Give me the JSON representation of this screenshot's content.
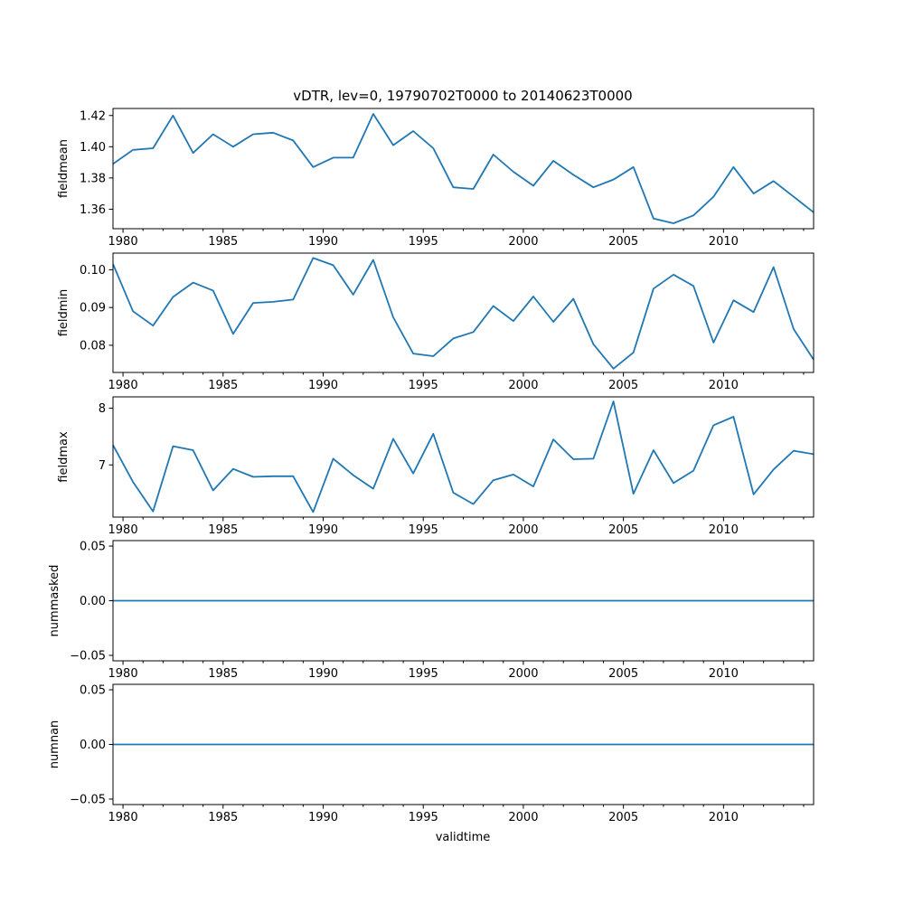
{
  "figure": {
    "title": "vDTR, lev=0, 19790702T0000 to 20140623T0000",
    "xlabel": "validtime",
    "line_color": "#1f77b4"
  },
  "chart_data": [
    {
      "type": "line",
      "name": "fieldmean",
      "ylabel": "fieldmean",
      "xlim": [
        1979.5,
        2014.5
      ],
      "ylim": [
        1.3475,
        1.4245
      ],
      "yticks": [
        1.36,
        1.38,
        1.4,
        1.42
      ],
      "ytick_labels": [
        "1.36",
        "1.38",
        "1.40",
        "1.42"
      ],
      "x": [
        1979.5,
        1980.5,
        1981.5,
        1982.5,
        1983.5,
        1984.5,
        1985.5,
        1986.5,
        1987.5,
        1988.5,
        1989.5,
        1990.5,
        1991.5,
        1992.5,
        1993.5,
        1994.5,
        1995.5,
        1996.5,
        1997.5,
        1998.5,
        1999.5,
        2000.5,
        2001.5,
        2002.5,
        2003.5,
        2004.5,
        2005.5,
        2006.5,
        2007.5,
        2008.5,
        2009.5,
        2010.5,
        2011.5,
        2012.5,
        2013.5,
        2014.5
      ],
      "values": [
        1.389,
        1.398,
        1.399,
        1.42,
        1.396,
        1.408,
        1.4,
        1.408,
        1.409,
        1.404,
        1.387,
        1.393,
        1.393,
        1.421,
        1.401,
        1.41,
        1.399,
        1.374,
        1.373,
        1.395,
        1.384,
        1.375,
        1.391,
        1.382,
        1.374,
        1.379,
        1.387,
        1.354,
        1.351,
        1.356,
        1.368,
        1.387,
        1.37,
        1.378,
        1.368,
        1.358
      ]
    },
    {
      "type": "line",
      "name": "fieldmin",
      "ylabel": "fieldmin",
      "xlim": [
        1979.5,
        2014.5
      ],
      "ylim": [
        0.0728,
        0.1044
      ],
      "yticks": [
        0.08,
        0.09,
        0.1
      ],
      "ytick_labels": [
        "0.08",
        "0.09",
        "0.10"
      ],
      "x": [
        1979.5,
        1980.5,
        1981.5,
        1982.5,
        1983.5,
        1984.5,
        1985.5,
        1986.5,
        1987.5,
        1988.5,
        1989.5,
        1990.5,
        1991.5,
        1992.5,
        1993.5,
        1994.5,
        1995.5,
        1996.5,
        1997.5,
        1998.5,
        1999.5,
        2000.5,
        2001.5,
        2002.5,
        2003.5,
        2004.5,
        2005.5,
        2006.5,
        2007.5,
        2008.5,
        2009.5,
        2010.5,
        2011.5,
        2012.5,
        2013.5,
        2014.5
      ],
      "values": [
        0.1015,
        0.089,
        0.0852,
        0.0928,
        0.0966,
        0.0945,
        0.083,
        0.0912,
        0.0915,
        0.0921,
        0.1031,
        0.1012,
        0.0934,
        0.1026,
        0.0874,
        0.0778,
        0.0771,
        0.0818,
        0.0835,
        0.0904,
        0.0864,
        0.0929,
        0.0862,
        0.0923,
        0.0803,
        0.0738,
        0.0781,
        0.095,
        0.0987,
        0.0957,
        0.0807,
        0.0919,
        0.0888,
        0.1007,
        0.0843,
        0.0762
      ]
    },
    {
      "type": "line",
      "name": "fieldmax",
      "ylabel": "fieldmax",
      "xlim": [
        1979.5,
        2014.5
      ],
      "ylim": [
        6.08,
        8.2
      ],
      "yticks": [
        7,
        8
      ],
      "ytick_labels": [
        "7",
        "8"
      ],
      "x": [
        1979.5,
        1980.5,
        1981.5,
        1982.5,
        1983.5,
        1984.5,
        1985.5,
        1986.5,
        1987.5,
        1988.5,
        1989.5,
        1990.5,
        1991.5,
        1992.5,
        1993.5,
        1994.5,
        1995.5,
        1996.5,
        1997.5,
        1998.5,
        1999.5,
        2000.5,
        2001.5,
        2002.5,
        2003.5,
        2004.5,
        2005.5,
        2006.5,
        2007.5,
        2008.5,
        2009.5,
        2010.5,
        2011.5,
        2012.5,
        2013.5,
        2014.5
      ],
      "values": [
        7.35,
        6.7,
        6.18,
        7.33,
        7.26,
        6.55,
        6.93,
        6.79,
        6.8,
        6.8,
        6.17,
        7.11,
        6.82,
        6.58,
        7.46,
        6.85,
        7.55,
        6.51,
        6.31,
        6.73,
        6.83,
        6.62,
        7.45,
        7.1,
        7.11,
        8.12,
        6.49,
        7.26,
        6.68,
        6.9,
        7.7,
        7.85,
        6.48,
        6.92,
        7.25,
        7.19
      ]
    },
    {
      "type": "line",
      "name": "nummasked",
      "ylabel": "nummasked",
      "xlim": [
        1979.5,
        2014.5
      ],
      "ylim": [
        -0.055,
        0.055
      ],
      "yticks": [
        -0.05,
        0.0,
        0.05
      ],
      "ytick_labels": [
        "−0.05",
        "0.00",
        "0.05"
      ],
      "x": [
        1979.5,
        2014.5
      ],
      "values": [
        0,
        0
      ]
    },
    {
      "type": "line",
      "name": "numnan",
      "ylabel": "numnan",
      "xlim": [
        1979.5,
        2014.5
      ],
      "ylim": [
        -0.055,
        0.055
      ],
      "yticks": [
        -0.05,
        0.0,
        0.05
      ],
      "ytick_labels": [
        "−0.05",
        "0.00",
        "0.05"
      ],
      "x": [
        1979.5,
        2014.5
      ],
      "values": [
        0,
        0
      ]
    }
  ],
  "x_axis": {
    "major_ticks": [
      1980,
      1985,
      1990,
      1995,
      2000,
      2005,
      2010
    ],
    "major_labels": [
      "1980",
      "1985",
      "1990",
      "1995",
      "2000",
      "2005",
      "2010"
    ],
    "minor_step": 1
  }
}
